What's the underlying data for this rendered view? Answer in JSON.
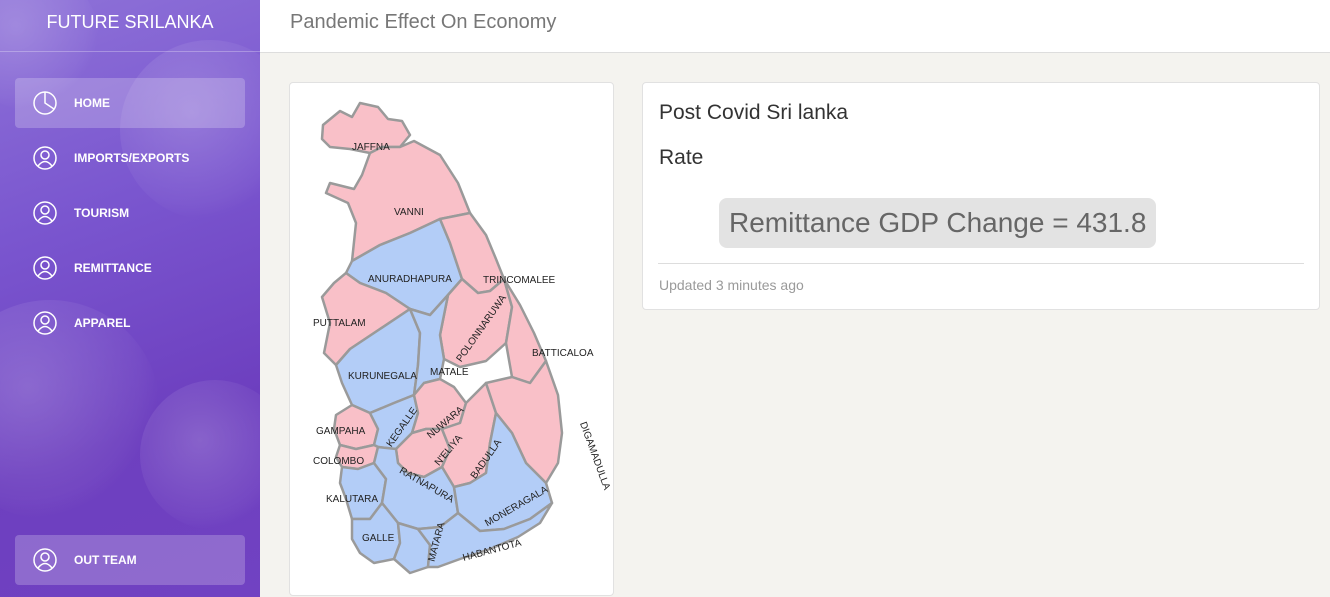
{
  "sidebar": {
    "brand": "FUTURE SRILANKA",
    "items": [
      {
        "label": "HOME",
        "icon": "pie-chart-icon",
        "active": true
      },
      {
        "label": "IMPORTS/EXPORTS",
        "icon": "user-icon"
      },
      {
        "label": "TOURISM",
        "icon": "user-icon"
      },
      {
        "label": "REMITTANCE",
        "icon": "user-icon"
      },
      {
        "label": "APPAREL",
        "icon": "user-icon"
      }
    ],
    "footer_item": {
      "label": "OUT TEAM",
      "icon": "user-icon"
    }
  },
  "header": {
    "title": "Pandemic Effect On Economy"
  },
  "map": {
    "labels": [
      "JAFFNA",
      "VANNI",
      "ANURADHAPURA",
      "TRINCOMALEE",
      "PUTTALAM",
      "POLONNARUWA",
      "BATTICALOA",
      "KURUNEGALA",
      "MATALE",
      "KEGALLE",
      "NUWARA",
      "GAMPAHA",
      "N'ELIYA",
      "BADULLA",
      "DIGAMADULLA",
      "COLOMBO",
      "KALUTARA",
      "RATNAPURA",
      "MONERAGALA",
      "GALLE",
      "MATARA",
      "HABANTOTA"
    ],
    "colors": {
      "pink": "#f9c0c8",
      "blue": "#b3cdf7",
      "border": "#9a9a9a"
    }
  },
  "info": {
    "heading": "Post Covid Sri lanka",
    "subheading": "Rate",
    "value_text": "Remittance GDP Change = 431.8",
    "updated": "Updated 3 minutes ago"
  }
}
